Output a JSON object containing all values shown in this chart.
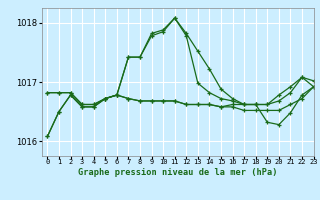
{
  "bg_color": "#cceeff",
  "grid_color": "#ffffff",
  "line_color": "#1a6b1a",
  "title": "Graphe pression niveau de la mer (hPa)",
  "xlim": [
    -0.5,
    23
  ],
  "ylim": [
    1015.75,
    1018.25
  ],
  "yticks": [
    1016,
    1017,
    1018
  ],
  "xtick_labels": [
    "0",
    "1",
    "2",
    "3",
    "4",
    "5",
    "6",
    "7",
    "8",
    "9",
    "10",
    "11",
    "12",
    "13",
    "14",
    "15",
    "16",
    "17",
    "18",
    "19",
    "20",
    "21",
    "22",
    "23"
  ],
  "series": [
    [
      1016.08,
      1016.5,
      1016.78,
      1016.58,
      1016.58,
      1016.72,
      1016.78,
      1017.42,
      1017.42,
      1017.82,
      1017.88,
      1018.08,
      1017.82,
      1017.52,
      1017.22,
      1016.88,
      1016.72,
      1016.62,
      1016.62,
      1016.62,
      1016.78,
      1016.92,
      1017.08,
      1016.92
    ],
    [
      1016.82,
      1016.82,
      1016.82,
      1016.62,
      1016.62,
      1016.72,
      1016.78,
      1016.72,
      1016.68,
      1016.68,
      1016.68,
      1016.68,
      1016.62,
      1016.62,
      1016.62,
      1016.58,
      1016.58,
      1016.52,
      1016.52,
      1016.52,
      1016.52,
      1016.62,
      1016.72,
      1016.92
    ],
    [
      1016.08,
      1016.5,
      1016.78,
      1016.58,
      1016.58,
      1016.72,
      1016.78,
      1017.42,
      1017.42,
      1017.78,
      1017.85,
      1018.08,
      1017.78,
      1016.98,
      1016.82,
      1016.72,
      1016.68,
      1016.62,
      1016.62,
      1016.32,
      1016.28,
      1016.48,
      1016.78,
      1016.92
    ],
    [
      1016.82,
      1016.82,
      1016.82,
      1016.62,
      1016.62,
      1016.72,
      1016.78,
      1016.72,
      1016.68,
      1016.68,
      1016.68,
      1016.68,
      1016.62,
      1016.62,
      1016.62,
      1016.58,
      1016.62,
      1016.62,
      1016.62,
      1016.62,
      1016.68,
      1016.82,
      1017.08,
      1017.02
    ]
  ]
}
